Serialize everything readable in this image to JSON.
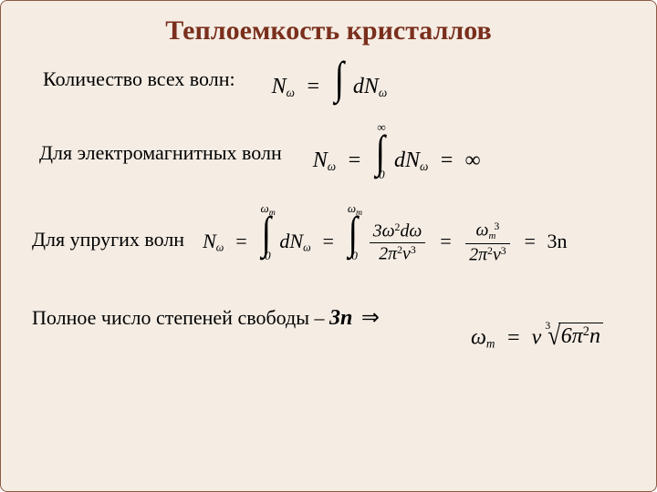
{
  "colors": {
    "background": "#f5ede4",
    "border": "#8a5a44",
    "title": "#7a2f1d",
    "text": "#000000"
  },
  "title": "Теплоемкость кристаллов",
  "rows": {
    "r1": {
      "label": "Количество всех волн:"
    },
    "r2": {
      "label": "Для электромагнитных волн"
    },
    "r3": {
      "label": "Для упругих волн"
    },
    "r4": {
      "label_prefix": "Полное число степеней свободы – ",
      "threen": "3n",
      "arrow": "⇒"
    }
  },
  "formulas": {
    "f1": {
      "lhs_base": "N",
      "lhs_sub": "ω",
      "int_upper": "",
      "int_lower": "",
      "integrand_base": "dN",
      "integrand_sub": "ω"
    },
    "f2": {
      "lhs_base": "N",
      "lhs_sub": "ω",
      "int_upper": "∞",
      "int_lower": "0",
      "integrand_base": "dN",
      "integrand_sub": "ω",
      "result": "∞"
    },
    "f3": {
      "lhs_base": "N",
      "lhs_sub": "ω",
      "int1_upper_base": "ω",
      "int1_upper_sub": "m",
      "int1_lower": "0",
      "int1_integrand_base": "dN",
      "int1_integrand_sub": "ω",
      "int2_upper_base": "ω",
      "int2_upper_sub": "m",
      "int2_lower": "0",
      "frac1_num": "3ω<span class='sup upright'>2</span>dω",
      "frac1_den": "2π<span class='sup upright'>2</span>v<span class='sup upright'>3</span>",
      "frac2_num": "ω<span class='sub'>m</span><span class='sup upright' style='margin-left:-2px;'>3</span>",
      "frac2_den": "2π<span class='sup upright'>2</span>v<span class='sup upright'>3</span>",
      "result": "3n"
    },
    "f4": {
      "lhs_base": "ω",
      "lhs_sub": "m",
      "root_index": "3",
      "rhs_prefix": "v",
      "radicand": "6π<span class='sup upright'>2</span>n"
    }
  }
}
